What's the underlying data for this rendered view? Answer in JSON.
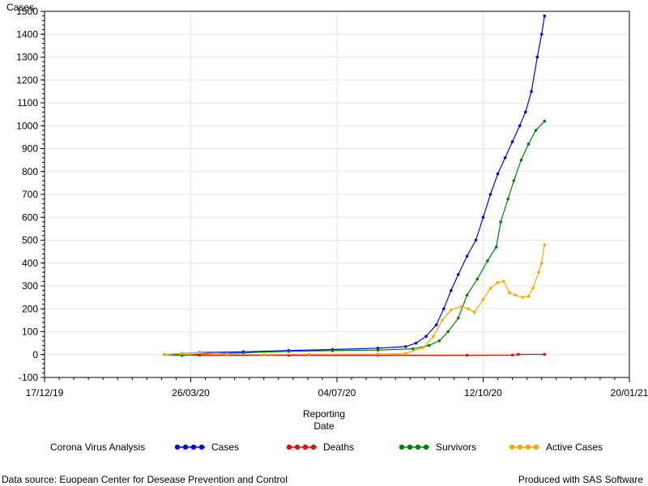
{
  "chart_data": {
    "type": "line",
    "ylabel": "Cases",
    "xlabel_line1": "Reporting",
    "xlabel_line2": "Date",
    "ylim": [
      -100,
      1500
    ],
    "yticks": [
      -100,
      0,
      100,
      200,
      300,
      400,
      500,
      600,
      700,
      800,
      900,
      1000,
      1100,
      1200,
      1300,
      1400,
      1500
    ],
    "xlim": [
      "2019-12-17",
      "2021-01-20"
    ],
    "xticks": [
      "17/12/19",
      "26/03/20",
      "04/07/20",
      "12/10/20",
      "20/01/21"
    ],
    "grid": true,
    "legend_position": "bottom",
    "series": [
      {
        "name": "Cases",
        "color": "#0000ff",
        "points": [
          [
            "2020-03-08",
            0
          ],
          [
            "2020-03-20",
            5
          ],
          [
            "2020-04-01",
            9
          ],
          [
            "2020-05-01",
            12
          ],
          [
            "2020-06-01",
            18
          ],
          [
            "2020-07-01",
            22
          ],
          [
            "2020-08-01",
            28
          ],
          [
            "2020-08-20",
            35
          ],
          [
            "2020-08-27",
            50
          ],
          [
            "2020-09-03",
            80
          ],
          [
            "2020-09-10",
            130
          ],
          [
            "2020-09-15",
            200
          ],
          [
            "2020-09-20",
            280
          ],
          [
            "2020-09-25",
            350
          ],
          [
            "2020-10-01",
            430
          ],
          [
            "2020-10-07",
            500
          ],
          [
            "2020-10-12",
            600
          ],
          [
            "2020-10-17",
            700
          ],
          [
            "2020-10-22",
            790
          ],
          [
            "2020-10-27",
            860
          ],
          [
            "2020-11-01",
            930
          ],
          [
            "2020-11-06",
            1000
          ],
          [
            "2020-11-10",
            1060
          ],
          [
            "2020-11-14",
            1150
          ],
          [
            "2020-11-18",
            1300
          ],
          [
            "2020-11-21",
            1400
          ],
          [
            "2020-11-23",
            1480
          ]
        ]
      },
      {
        "name": "Deaths",
        "color": "#ff0000",
        "points": [
          [
            "2020-03-08",
            0
          ],
          [
            "2020-04-01",
            -3
          ],
          [
            "2020-06-01",
            -3
          ],
          [
            "2020-08-01",
            -3
          ],
          [
            "2020-10-01",
            -3
          ],
          [
            "2020-11-01",
            -2
          ],
          [
            "2020-11-05",
            1
          ],
          [
            "2020-11-23",
            1
          ]
        ]
      },
      {
        "name": "Survivors",
        "color": "#008000",
        "points": [
          [
            "2020-03-08",
            0
          ],
          [
            "2020-03-20",
            -4
          ],
          [
            "2020-04-01",
            2
          ],
          [
            "2020-05-01",
            8
          ],
          [
            "2020-06-01",
            14
          ],
          [
            "2020-07-01",
            17
          ],
          [
            "2020-08-01",
            20
          ],
          [
            "2020-08-25",
            25
          ],
          [
            "2020-09-05",
            40
          ],
          [
            "2020-09-12",
            60
          ],
          [
            "2020-09-18",
            100
          ],
          [
            "2020-09-25",
            160
          ],
          [
            "2020-10-01",
            260
          ],
          [
            "2020-10-08",
            330
          ],
          [
            "2020-10-15",
            410
          ],
          [
            "2020-10-21",
            470
          ],
          [
            "2020-10-24",
            580
          ],
          [
            "2020-10-29",
            680
          ],
          [
            "2020-11-02",
            760
          ],
          [
            "2020-11-07",
            850
          ],
          [
            "2020-11-12",
            920
          ],
          [
            "2020-11-17",
            980
          ],
          [
            "2020-11-23",
            1020
          ]
        ]
      },
      {
        "name": "Active Cases",
        "color": "#ffa500",
        "points": [
          [
            "2020-03-08",
            0
          ],
          [
            "2020-03-20",
            5
          ],
          [
            "2020-04-01",
            8
          ],
          [
            "2020-04-20",
            2
          ],
          [
            "2020-05-15",
            0
          ],
          [
            "2020-06-15",
            2
          ],
          [
            "2020-08-01",
            2
          ],
          [
            "2020-08-20",
            5
          ],
          [
            "2020-09-01",
            30
          ],
          [
            "2020-09-08",
            80
          ],
          [
            "2020-09-14",
            150
          ],
          [
            "2020-09-20",
            195
          ],
          [
            "2020-09-27",
            210
          ],
          [
            "2020-10-02",
            200
          ],
          [
            "2020-10-06",
            185
          ],
          [
            "2020-10-12",
            240
          ],
          [
            "2020-10-17",
            290
          ],
          [
            "2020-10-22",
            315
          ],
          [
            "2020-10-26",
            320
          ],
          [
            "2020-10-30",
            270
          ],
          [
            "2020-11-03",
            260
          ],
          [
            "2020-11-08",
            250
          ],
          [
            "2020-11-12",
            255
          ],
          [
            "2020-11-15",
            290
          ],
          [
            "2020-11-19",
            360
          ],
          [
            "2020-11-21",
            400
          ],
          [
            "2020-11-23",
            480
          ]
        ]
      }
    ]
  },
  "legend": {
    "title": "Corona Virus Analysis",
    "items": [
      {
        "label": "Cases",
        "color": "#0000ff"
      },
      {
        "label": "Deaths",
        "color": "#ff0000"
      },
      {
        "label": "Survivors",
        "color": "#008000"
      },
      {
        "label": "Active Cases",
        "color": "#ffa500"
      }
    ]
  },
  "footer": {
    "source": "Data source: Euopean Center for Desease Prevention and Control",
    "credit": "Produced with SAS Software"
  }
}
